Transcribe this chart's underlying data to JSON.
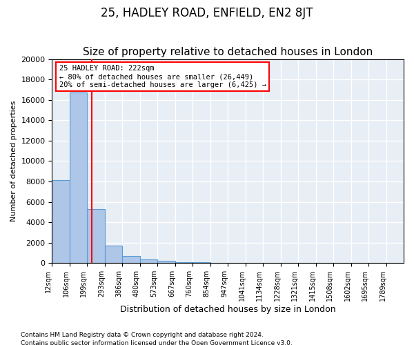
{
  "title": "25, HADLEY ROAD, ENFIELD, EN2 8JT",
  "subtitle": "Size of property relative to detached houses in London",
  "xlabel": "Distribution of detached houses by size in London",
  "ylabel": "Number of detached properties",
  "footnote1": "Contains HM Land Registry data © Crown copyright and database right 2024.",
  "footnote2": "Contains public sector information licensed under the Open Government Licence v3.0.",
  "bar_color": "#aec6e8",
  "bar_edge_color": "#5b9bd5",
  "annotation_text": "25 HADLEY ROAD: 222sqm\n← 80% of detached houses are smaller (26,449)\n20% of semi-detached houses are larger (6,425) →",
  "vline_x": 222,
  "vline_color": "red",
  "annotation_box_color": "red",
  "bins": [
    12,
    106,
    199,
    293,
    386,
    480,
    573,
    667,
    760,
    854,
    947,
    1041,
    1134,
    1228,
    1321,
    1415,
    1508,
    1602,
    1695,
    1789,
    1882
  ],
  "counts": [
    8100,
    16700,
    5300,
    1700,
    700,
    350,
    200,
    100,
    60,
    40,
    30,
    20,
    15,
    10,
    8,
    5,
    4,
    3,
    2,
    1
  ],
  "ylim": [
    0,
    20000
  ],
  "yticks": [
    0,
    2000,
    4000,
    6000,
    8000,
    10000,
    12000,
    14000,
    16000,
    18000,
    20000
  ],
  "bg_color": "#e8eef5",
  "grid_color": "white",
  "title_fontsize": 12,
  "subtitle_fontsize": 11
}
